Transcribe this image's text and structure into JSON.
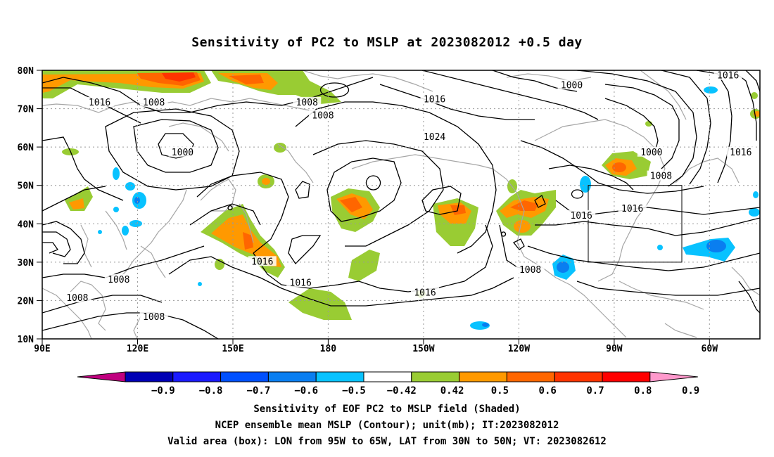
{
  "title": "Sensitivity of PC2 to MSLP at 2023082012 +0.5 day",
  "map": {
    "lat_ticks": [
      "80N",
      "70N",
      "60N",
      "50N",
      "40N",
      "30N",
      "20N",
      "10N"
    ],
    "lon_ticks": [
      "90E",
      "120E",
      "150E",
      "180",
      "150W",
      "120W",
      "90W",
      "60W"
    ],
    "lon_range": [
      "90E",
      "45W"
    ],
    "lat_range": [
      "10N",
      "80N"
    ],
    "grid": true,
    "grid_style": "dotted",
    "valid_box": {
      "lon_from": "95W",
      "lon_to": "65W",
      "lat_from": "30N",
      "lat_to": "50N"
    }
  },
  "contours": {
    "unit": "mb",
    "labels": [
      {
        "text": "1016",
        "lon": 108,
        "lat": 71.6
      },
      {
        "text": "1008",
        "lon": 125,
        "lat": 71.6
      },
      {
        "text": "1008",
        "lon": 173,
        "lat": 71.6
      },
      {
        "text": "1008",
        "lon": 178,
        "lat": 68.2
      },
      {
        "text": "1000",
        "lon": 134,
        "lat": 58.6
      },
      {
        "text": "1016",
        "lon": 213,
        "lat": 72.4
      },
      {
        "text": "1024",
        "lon": 213,
        "lat": 62.6
      },
      {
        "text": "1000",
        "lon": 256,
        "lat": 76.1
      },
      {
        "text": "1016",
        "lon": 305,
        "lat": 78.6
      },
      {
        "text": "1000",
        "lon": 281,
        "lat": 58.6
      },
      {
        "text": "1008",
        "lon": 284,
        "lat": 52.4
      },
      {
        "text": "1016",
        "lon": 309,
        "lat": 58.6
      },
      {
        "text": "1016",
        "lon": 259,
        "lat": 42.1
      },
      {
        "text": "1016",
        "lon": 275,
        "lat": 43.9
      },
      {
        "text": "1016",
        "lon": 159,
        "lat": 30.1
      },
      {
        "text": "1016",
        "lon": 171,
        "lat": 24.6
      },
      {
        "text": "1016",
        "lon": 210,
        "lat": 22.0
      },
      {
        "text": "1008",
        "lon": 243,
        "lat": 28.0
      },
      {
        "text": "1008",
        "lon": 114,
        "lat": 25.4
      },
      {
        "text": "1008",
        "lon": 101,
        "lat": 20.6
      },
      {
        "text": "1008",
        "lon": 125,
        "lat": 15.7
      }
    ]
  },
  "colorbar": {
    "labels": [
      "−0.9",
      "−0.8",
      "−0.7",
      "−0.6",
      "−0.5",
      "−0.42",
      "0.42",
      "0.5",
      "0.6",
      "0.7",
      "0.8",
      "0.9"
    ],
    "colors": [
      "#c0007f",
      "#0000b4",
      "#1a1aff",
      "#0050ff",
      "#0a7ef0",
      "#08c2ff",
      "#ffffff",
      "#99cc33",
      "#ff9900",
      "#ff6600",
      "#ff3300",
      "#ff0000",
      "#ff99cc"
    ]
  },
  "colors": {
    "green": "#99cc33",
    "orange": "#ff9900",
    "dark_orange": "#ff6600",
    "red": "#ff3300",
    "light_blue": "#08c2ff",
    "blue": "#0a7ef0",
    "coastline": "#a6a6a6",
    "contour": "#000000"
  },
  "captions": [
    "Sensitivity of EOF PC2 to MSLP field (Shaded)",
    "NCEP ensemble mean MSLP (Contour); unit(mb); IT:2023082012",
    "Valid area (box): LON from 95W to 65W, LAT from 30N to 50N; VT: 2023082612"
  ]
}
